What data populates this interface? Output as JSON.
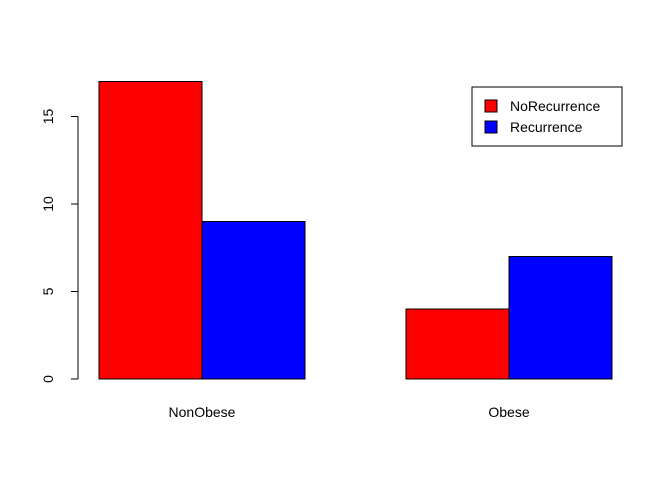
{
  "chart_data": {
    "type": "bar",
    "categories": [
      "NonObese",
      "Obese"
    ],
    "series": [
      {
        "name": "NoRecurrence",
        "color": "#ff0000",
        "values": [
          17,
          4
        ]
      },
      {
        "name": "Recurrence",
        "color": "#0000ff",
        "values": [
          9,
          7
        ]
      }
    ],
    "yticks": [
      0,
      5,
      10,
      15
    ],
    "ylim": [
      0,
      18
    ],
    "grid": false,
    "legend_position": "top-right",
    "title": "",
    "xlabel": "",
    "ylabel": ""
  }
}
